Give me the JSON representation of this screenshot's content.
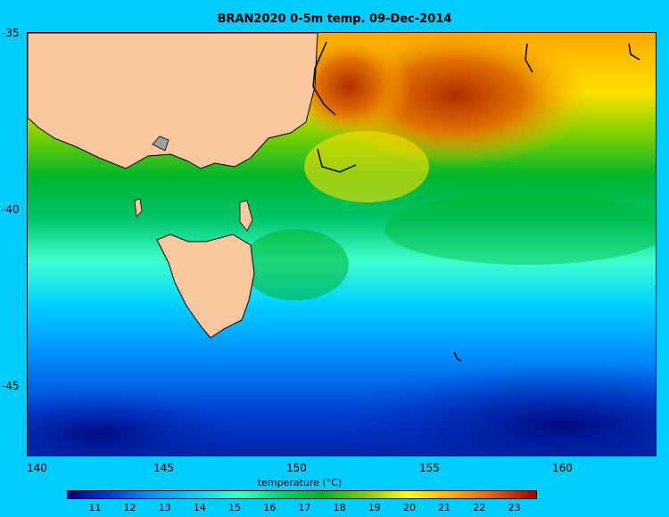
{
  "title": "BRAN2020 0-5m temp. 09-Dec-2014",
  "map": {
    "lon_range": [
      139.8,
      163.4
    ],
    "lat_range": [
      -46.9,
      -35.0
    ],
    "x_ticks": [
      140,
      145,
      150,
      155,
      160
    ],
    "y_ticks": [
      -35,
      -40,
      -45
    ],
    "y_tick_labels": [
      "-35",
      "-40",
      "-45"
    ],
    "land_color": "#f9c89f",
    "background_color": "#00ccff"
  },
  "colorbar": {
    "label": "temperature (°C)",
    "min": 10.2,
    "max": 23.6,
    "ticks": [
      11,
      12,
      13,
      14,
      15,
      16,
      17,
      18,
      19,
      20,
      21,
      22,
      23
    ],
    "colors": [
      "#000080",
      "#0040d0",
      "#0096ff",
      "#00d2ff",
      "#40ffd0",
      "#00d27a",
      "#00b42c",
      "#7ed000",
      "#ffff00",
      "#ffb000",
      "#e06000",
      "#a00000"
    ]
  }
}
